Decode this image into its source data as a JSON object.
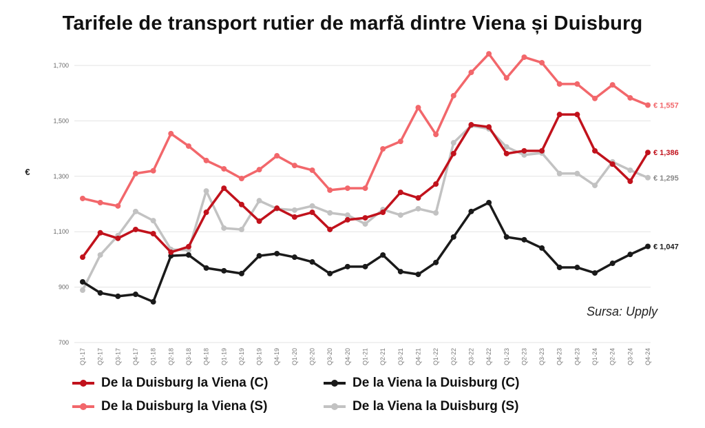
{
  "chart_data": {
    "type": "line",
    "title": "Tarifele de transport rutier de marfă dintre Viena și Duisburg",
    "xlabel": "",
    "ylabel": "€",
    "ylim": [
      700,
      1700
    ],
    "yticks": [
      700,
      900,
      1100,
      1300,
      1500,
      1700
    ],
    "ytick_labels": [
      "700",
      "900",
      "1,100",
      "1,300",
      "1,500",
      "1,700"
    ],
    "grid": true,
    "legend_position": "bottom",
    "categories": [
      "Q1-17",
      "Q2-17",
      "Q3-17",
      "Q4-17",
      "Q1-18",
      "Q2-18",
      "Q3-18",
      "Q4-18",
      "Q1-19",
      "Q2-19",
      "Q3-19",
      "Q4-19",
      "Q1-20",
      "Q2-20",
      "Q3-20",
      "Q4-20",
      "Q1-21",
      "Q2-21",
      "Q3-21",
      "Q4-21",
      "Q1-22",
      "Q2-22",
      "Q3-22",
      "Q4-22",
      "Q1-23",
      "Q2-23",
      "Q3-23",
      "Q4-23",
      "Q4-23",
      "Q1-24",
      "Q2-24",
      "Q3-24",
      "Q4-24"
    ],
    "series": [
      {
        "name": "De la Duisburg la Viena (C)",
        "color": "#c1121c",
        "end_label": "€ 1,386",
        "values": [
          1008,
          1096,
          1076,
          1108,
          1093,
          1026,
          1046,
          1170,
          1257,
          1198,
          1138,
          1185,
          1153,
          1170,
          1108,
          1143,
          1150,
          1170,
          1242,
          1222,
          1272,
          1382,
          1486,
          1478,
          1382,
          1392,
          1392,
          1523,
          1523,
          1392,
          1344,
          1282,
          1386
        ]
      },
      {
        "name": "De la Viena la Duisburg (C)",
        "color": "#1a1a1a",
        "end_label": "€ 1,047",
        "values": [
          919,
          879,
          867,
          874,
          847,
          1013,
          1016,
          969,
          959,
          949,
          1013,
          1021,
          1008,
          991,
          949,
          974,
          974,
          1016,
          956,
          946,
          989,
          1081,
          1173,
          1205,
          1081,
          1071,
          1041,
          971,
          971,
          951,
          986,
          1018,
          1047
        ]
      },
      {
        "name": "De la Duisburg la Viena (S)",
        "color": "#f2676b",
        "end_label": "€ 1,557",
        "values": [
          1220,
          1205,
          1193,
          1310,
          1320,
          1454,
          1409,
          1357,
          1327,
          1292,
          1324,
          1374,
          1339,
          1322,
          1250,
          1257,
          1257,
          1399,
          1426,
          1548,
          1451,
          1591,
          1675,
          1742,
          1655,
          1730,
          1710,
          1633,
          1633,
          1581,
          1630,
          1583,
          1557
        ]
      },
      {
        "name": "De la Viena la Duisburg (S)",
        "color": "#c2c2c2",
        "end_label": "€ 1,295",
        "values": [
          889,
          1016,
          1086,
          1173,
          1140,
          1036,
          1033,
          1247,
          1113,
          1108,
          1212,
          1183,
          1178,
          1193,
          1168,
          1160,
          1128,
          1180,
          1160,
          1183,
          1168,
          1421,
          1483,
          1471,
          1406,
          1377,
          1384,
          1310,
          1310,
          1267,
          1352,
          1322,
          1295
        ]
      }
    ],
    "annotation": "Sursa: Upply"
  }
}
